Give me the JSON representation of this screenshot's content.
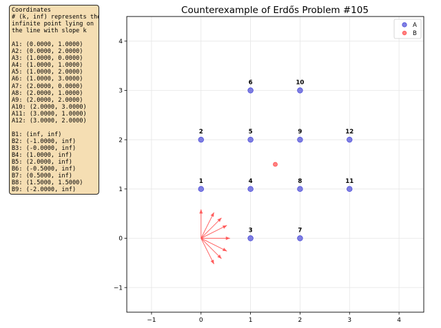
{
  "info_box": {
    "lines": [
      "Coordinates",
      "# (k, inf) represents the",
      "infinite point lying on",
      "the line with slope k",
      "",
      "A1: (0.0000, 1.0000)",
      "A2: (0.0000, 2.0000)",
      "A3: (1.0000, 0.0000)",
      "A4: (1.0000, 1.0000)",
      "A5: (1.0000, 2.0000)",
      "A6: (1.0000, 3.0000)",
      "A7: (2.0000, 0.0000)",
      "A8: (2.0000, 1.0000)",
      "A9: (2.0000, 2.0000)",
      "A10: (2.0000, 3.0000)",
      "A11: (3.0000, 1.0000)",
      "A12: (3.0000, 2.0000)",
      "",
      "B1: (inf, inf)",
      "B2: (-1.0000, inf)",
      "B3: (-0.0000, inf)",
      "B4: (1.0000, inf)",
      "B5: (2.0000, inf)",
      "B6: (-0.5000, inf)",
      "B7: (0.5000, inf)",
      "B8: (1.5000, 1.5000)",
      "B9: (-2.0000, inf)"
    ]
  },
  "chart_data": {
    "type": "scatter",
    "title": "Counterexample of Erdős Problem #105",
    "xlabel": "",
    "ylabel": "",
    "xlim": [
      -1.5,
      4.5
    ],
    "ylim": [
      -1.5,
      4.5
    ],
    "xticks": [
      -1,
      0,
      1,
      2,
      3,
      4
    ],
    "yticks": [
      -1,
      0,
      1,
      2,
      3,
      4
    ],
    "xtick_labels": [
      "−1",
      "0",
      "1",
      "2",
      "3",
      "4"
    ],
    "ytick_labels": [
      "−1",
      "0",
      "1",
      "2",
      "3",
      "4"
    ],
    "grid": true,
    "legend_position": "top-right",
    "series": [
      {
        "name": "A",
        "color": "#4b4bd8",
        "points": [
          {
            "label": "1",
            "x": 0,
            "y": 1
          },
          {
            "label": "2",
            "x": 0,
            "y": 2
          },
          {
            "label": "3",
            "x": 1,
            "y": 0
          },
          {
            "label": "4",
            "x": 1,
            "y": 1
          },
          {
            "label": "5",
            "x": 1,
            "y": 2
          },
          {
            "label": "6",
            "x": 1,
            "y": 3
          },
          {
            "label": "7",
            "x": 2,
            "y": 0
          },
          {
            "label": "8",
            "x": 2,
            "y": 1
          },
          {
            "label": "9",
            "x": 2,
            "y": 2
          },
          {
            "label": "10",
            "x": 2,
            "y": 3
          },
          {
            "label": "11",
            "x": 3,
            "y": 1
          },
          {
            "label": "12",
            "x": 3,
            "y": 2
          }
        ]
      },
      {
        "name": "B",
        "color": "#ff4c4c",
        "points": [
          {
            "x": 1.5,
            "y": 1.5
          }
        ]
      }
    ],
    "direction_arrows": {
      "color": "#ff4c4c",
      "origin": [
        0,
        0
      ],
      "slopes": [
        "inf",
        -1,
        0,
        1,
        2,
        -0.5,
        0.5,
        -2
      ]
    }
  }
}
